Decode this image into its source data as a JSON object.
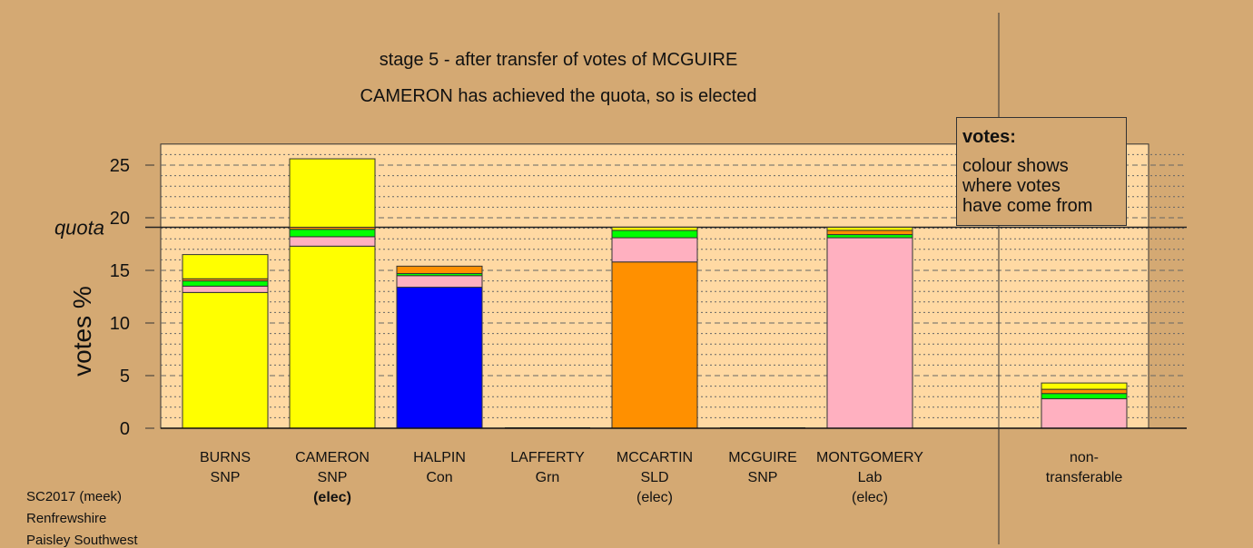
{
  "header": {
    "line1": "stage 5 - after transfer of votes of MCGUIRE",
    "line2": "CAMERON has achieved the quota, so is elected"
  },
  "legend": {
    "title": "votes:",
    "lines": [
      "colour shows",
      "where votes",
      "have come from"
    ]
  },
  "footer": {
    "lines": [
      "SC2017 (meek)",
      "Renfrewshire",
      "Paisley Southwest"
    ]
  },
  "colors": {
    "background": "#d4a973",
    "plot_bg": "#ffd9a3",
    "SNP": "#ffff00",
    "Con": "#0000ff",
    "Grn": "#00ff00",
    "SLD": "#ff9000",
    "Lab": "#ffb0c0"
  },
  "chart_data": {
    "type": "bar",
    "stacked": true,
    "ylabel": "votes %",
    "quota_label": "quota",
    "quota": 19.1,
    "ylim": [
      0,
      27
    ],
    "yticks": [
      "0",
      "5",
      "10",
      "15",
      "20",
      "25"
    ],
    "grid": true,
    "legend_position": "top-right",
    "candidates": [
      {
        "name": "BURNS",
        "party": "SNP",
        "status": "",
        "status_bold": false,
        "segments": [
          {
            "source": "SNP",
            "value": 12.9
          },
          {
            "source": "Lab",
            "value": 0.6
          },
          {
            "source": "Grn",
            "value": 0.5
          },
          {
            "source": "SLD",
            "value": 0.2
          },
          {
            "source": "SNP",
            "value": 2.3
          }
        ]
      },
      {
        "name": "CAMERON",
        "party": "SNP",
        "status": "(elec)",
        "status_bold": true,
        "segments": [
          {
            "source": "SNP",
            "value": 17.3
          },
          {
            "source": "Lab",
            "value": 0.9
          },
          {
            "source": "Grn",
            "value": 0.7
          },
          {
            "source": "SLD",
            "value": 0.2
          },
          {
            "source": "SNP",
            "value": 6.5
          }
        ]
      },
      {
        "name": "HALPIN",
        "party": "Con",
        "status": "",
        "status_bold": false,
        "segments": [
          {
            "source": "Con",
            "value": 13.4
          },
          {
            "source": "Lab",
            "value": 1.1
          },
          {
            "source": "Grn",
            "value": 0.2
          },
          {
            "source": "SLD",
            "value": 0.7
          }
        ]
      },
      {
        "name": "LAFFERTY",
        "party": "Grn",
        "status": "",
        "status_bold": false,
        "segments": []
      },
      {
        "name": "MCCARTIN",
        "party": "SLD",
        "status": "(elec)",
        "status_bold": false,
        "segments": [
          {
            "source": "SLD",
            "value": 15.8
          },
          {
            "source": "Lab",
            "value": 2.3
          },
          {
            "source": "Grn",
            "value": 0.7
          },
          {
            "source": "SNP",
            "value": 0.3
          }
        ]
      },
      {
        "name": "MCGUIRE",
        "party": "SNP",
        "status": "",
        "status_bold": false,
        "segments": []
      },
      {
        "name": "MONTGOMERY",
        "party": "Lab",
        "status": "(elec)",
        "status_bold": false,
        "segments": [
          {
            "source": "Lab",
            "value": 18.1
          },
          {
            "source": "Grn",
            "value": 0.3
          },
          {
            "source": "SLD",
            "value": 0.4
          },
          {
            "source": "SNP",
            "value": 0.3
          }
        ]
      },
      {
        "name": "non-",
        "party": "transferable",
        "status": "",
        "status_bold": false,
        "segments": [
          {
            "source": "Lab",
            "value": 2.8
          },
          {
            "source": "Grn",
            "value": 0.5
          },
          {
            "source": "SLD",
            "value": 0.4
          },
          {
            "source": "SNP",
            "value": 0.6
          }
        ]
      }
    ]
  }
}
